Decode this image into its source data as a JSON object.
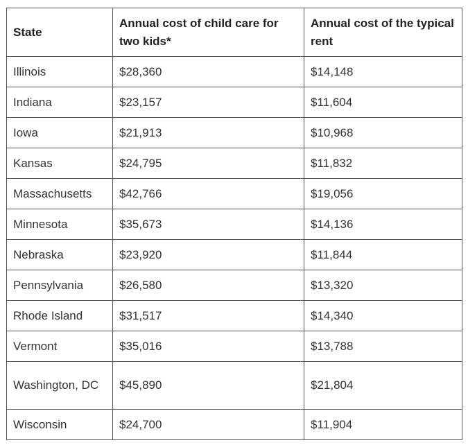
{
  "table": {
    "headers": [
      "State",
      "Annual cost of child care for two kids*",
      "Annual cost of the typical rent"
    ],
    "rows": [
      {
        "state": "Illinois",
        "child_care": "$28,360",
        "rent": "$14,148"
      },
      {
        "state": "Indiana",
        "child_care": "$23,157",
        "rent": "$11,604"
      },
      {
        "state": "Iowa",
        "child_care": "$21,913",
        "rent": "$10,968"
      },
      {
        "state": "Kansas",
        "child_care": "$24,795",
        "rent": "$11,832"
      },
      {
        "state": "Massachusetts",
        "child_care": "$42,766",
        "rent": "$19,056"
      },
      {
        "state": "Minnesota",
        "child_care": "$35,673",
        "rent": "$14,136"
      },
      {
        "state": "Nebraska",
        "child_care": "$23,920",
        "rent": "$11,844"
      },
      {
        "state": "Pennsylvania",
        "child_care": "$26,580",
        "rent": "$13,320"
      },
      {
        "state": "Rhode Island",
        "child_care": "$31,517",
        "rent": "$14,340"
      },
      {
        "state": "Vermont",
        "child_care": "$35,016",
        "rent": "$13,788"
      },
      {
        "state": "Washington, DC",
        "child_care": "$45,890",
        "rent": "$21,804"
      },
      {
        "state": "Wisconsin",
        "child_care": "$24,700",
        "rent": "$11,904"
      }
    ]
  }
}
